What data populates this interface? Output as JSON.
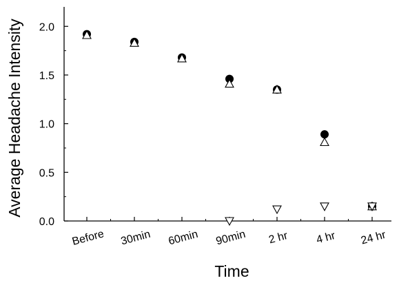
{
  "chart_data": {
    "type": "scatter",
    "xlabel": "Time",
    "ylabel": "Average Headache Intensity",
    "categories": [
      "Before",
      "30min",
      "60min",
      "90min",
      "2 hr",
      "4 hr",
      "24 hr"
    ],
    "ylim": [
      0,
      2.2
    ],
    "yticks": [
      "0.0",
      "0.5",
      "1.0",
      "1.5",
      "2.0"
    ],
    "series": [
      {
        "marker": "filled-circle",
        "values": [
          1.92,
          1.84,
          1.68,
          1.46,
          1.35,
          0.89,
          0.15
        ]
      },
      {
        "marker": "open-triangle-up",
        "values": [
          1.91,
          1.83,
          1.67,
          1.41,
          1.35,
          0.81,
          0.15
        ]
      },
      {
        "marker": "open-triangle-down",
        "values": [
          null,
          null,
          null,
          0.0,
          0.12,
          0.15,
          0.15
        ]
      }
    ],
    "grid": false,
    "legend": "none"
  }
}
